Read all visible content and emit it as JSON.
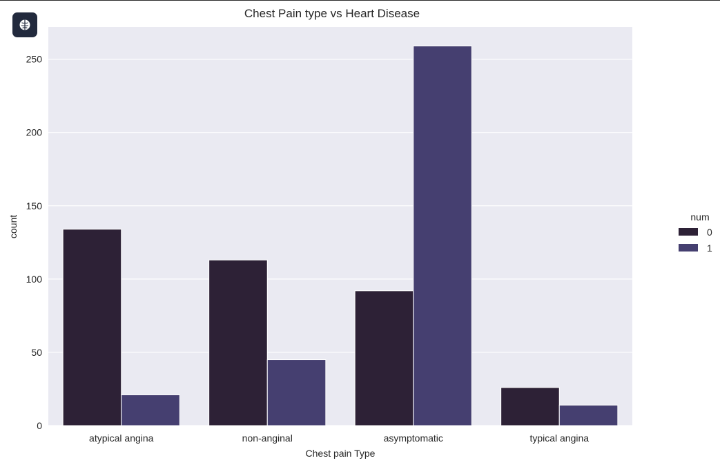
{
  "app": {
    "badge_icon": "brain-icon"
  },
  "chart_data": {
    "type": "bar",
    "title": "Chest Pain type vs Heart Disease",
    "xlabel": "Chest pain Type",
    "ylabel": "count",
    "categories": [
      "atypical angina",
      "non-anginal",
      "asymptomatic",
      "typical angina"
    ],
    "series": [
      {
        "name": "0",
        "values": [
          134,
          113,
          92,
          26
        ],
        "color": "#2d2136"
      },
      {
        "name": "1",
        "values": [
          21,
          45,
          259,
          14
        ],
        "color": "#453f70"
      }
    ],
    "ylim": [
      0,
      272
    ],
    "yticks": [
      0,
      50,
      100,
      150,
      200,
      250
    ],
    "grid": true,
    "background": "#eaeaf2",
    "legend": {
      "title": "num",
      "placement": "right"
    }
  }
}
